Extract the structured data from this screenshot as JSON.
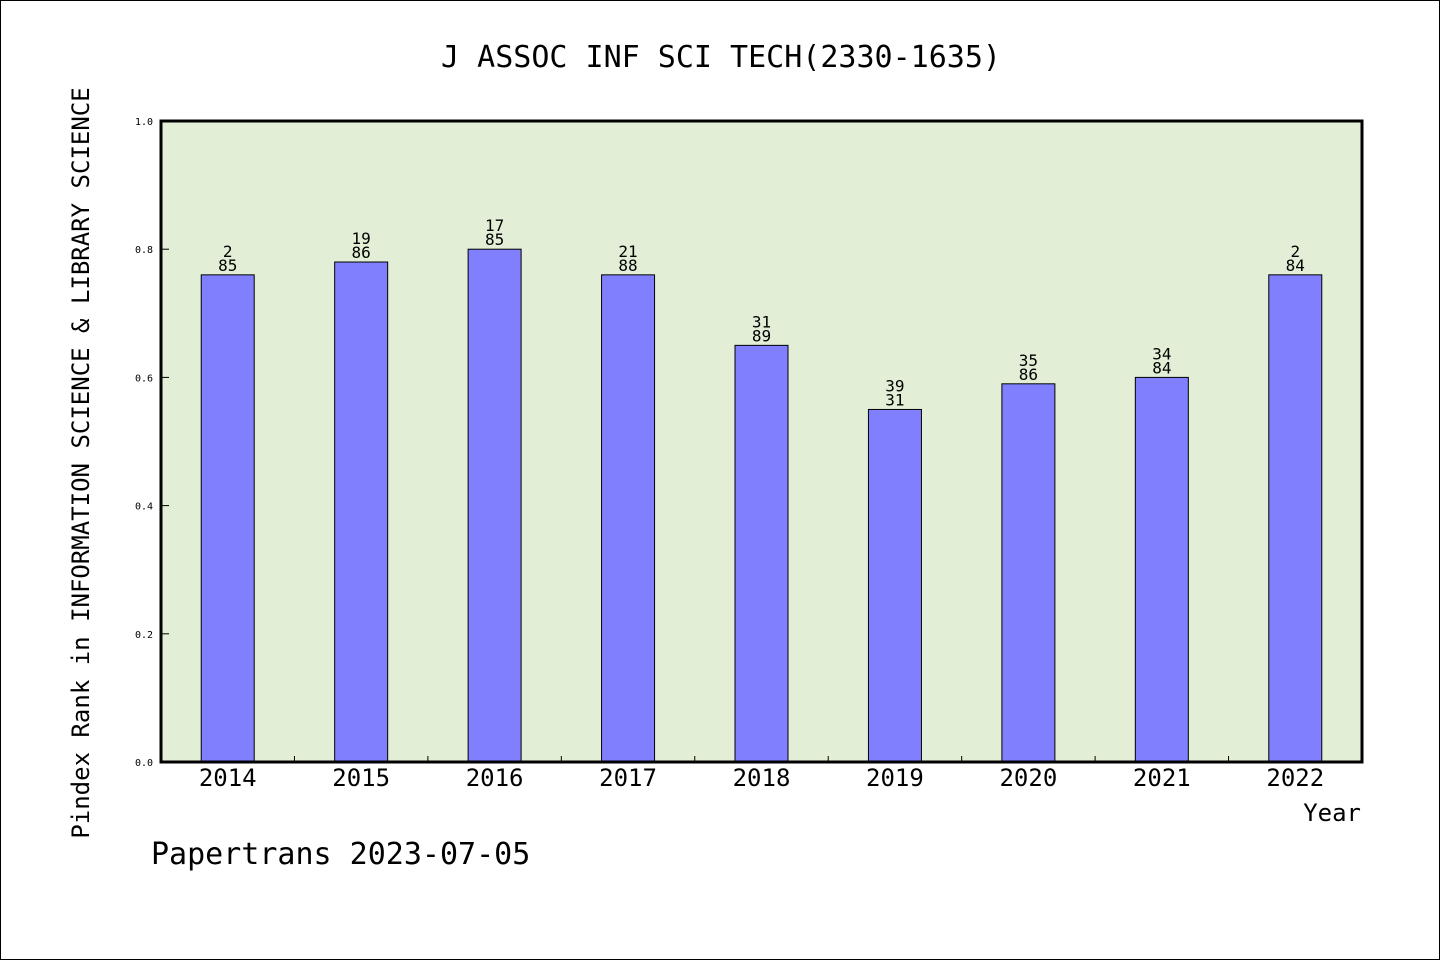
{
  "chart_data": {
    "type": "bar",
    "title": "J ASSOC INF SCI TECH(2330-1635)",
    "xlabel": "Year",
    "ylabel": "Pindex Rank in INFORMATION SCIENCE & LIBRARY SCIENCE",
    "ylim": [
      0,
      1.0
    ],
    "yticks": [
      "0.0",
      "0.2",
      "0.4",
      "0.6",
      "0.8",
      "1.0"
    ],
    "categories": [
      "2014",
      "2015",
      "2016",
      "2017",
      "2018",
      "2019",
      "2020",
      "2021",
      "2022"
    ],
    "values": [
      0.76,
      0.78,
      0.8,
      0.76,
      0.65,
      0.55,
      0.59,
      0.6,
      0.76
    ],
    "bar_labels": [
      [
        "2",
        "85"
      ],
      [
        "19",
        "86"
      ],
      [
        "17",
        "85"
      ],
      [
        "21",
        "88"
      ],
      [
        "31",
        "89"
      ],
      [
        "39",
        "31"
      ],
      [
        "35",
        "86"
      ],
      [
        "34",
        "84"
      ],
      [
        "2",
        "84"
      ]
    ],
    "grid": false,
    "colors": {
      "bar_fill": "#8080ff",
      "bar_stroke": "#000000",
      "plot_background": "#e2efd6"
    }
  },
  "footer": {
    "text": "Papertrans 2023-07-05"
  }
}
